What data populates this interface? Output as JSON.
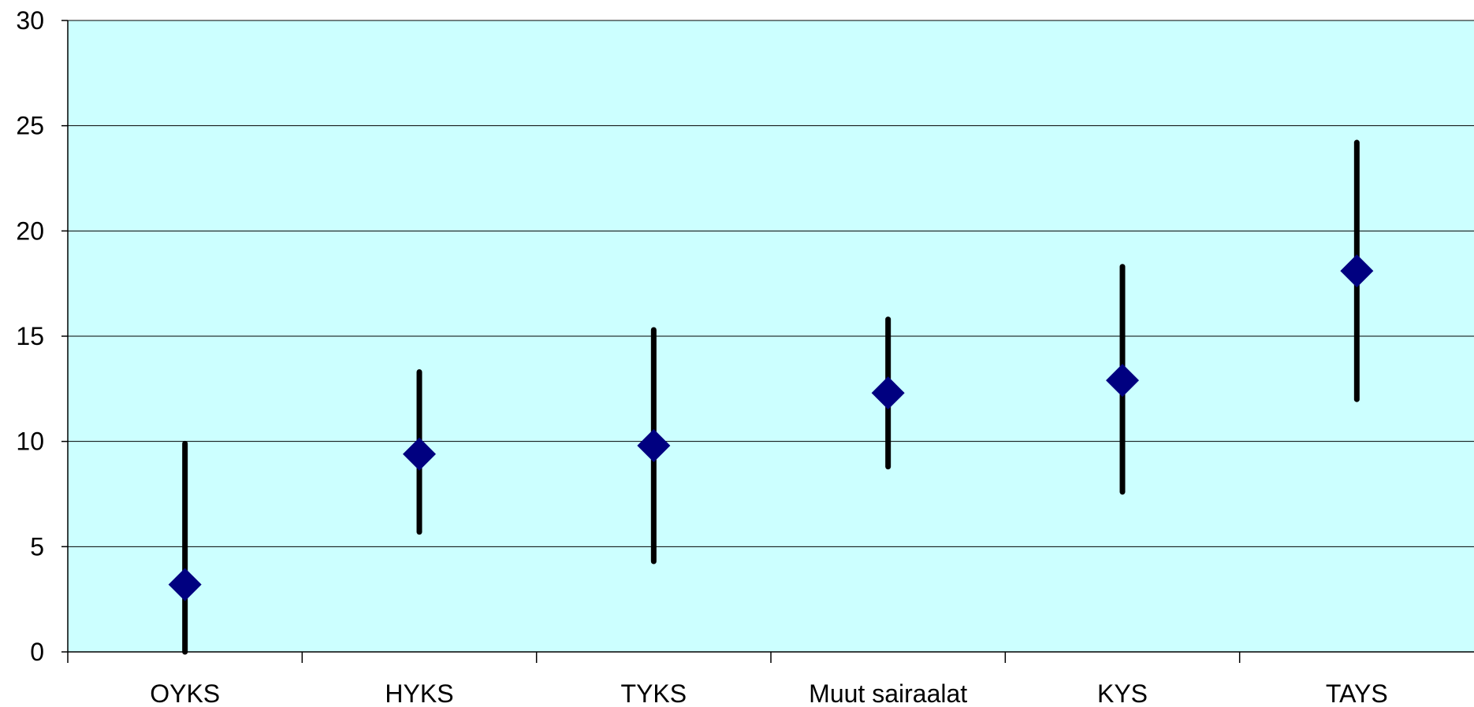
{
  "chart_data": {
    "type": "scatter",
    "categories": [
      "OYKS",
      "HYKS",
      "TYKS",
      "Muut sairaalat",
      "KYS",
      "TAYS"
    ],
    "values": [
      3.2,
      9.4,
      9.8,
      12.3,
      12.9,
      18.1
    ],
    "error_low": [
      0,
      5.7,
      4.3,
      8.8,
      7.6,
      12.0
    ],
    "error_high": [
      9.9,
      13.3,
      15.3,
      15.8,
      18.3,
      24.2
    ],
    "ylim": [
      0,
      30
    ],
    "yticks": [
      "0",
      "5",
      "10",
      "15",
      "20",
      "25",
      "30"
    ],
    "title": "",
    "xlabel": "",
    "ylabel": "",
    "grid": true,
    "legend": "none"
  },
  "colors": {
    "plot_background": "#ccffff",
    "marker": "#000080",
    "error_bar": "#000000",
    "gridline": "#000000"
  }
}
